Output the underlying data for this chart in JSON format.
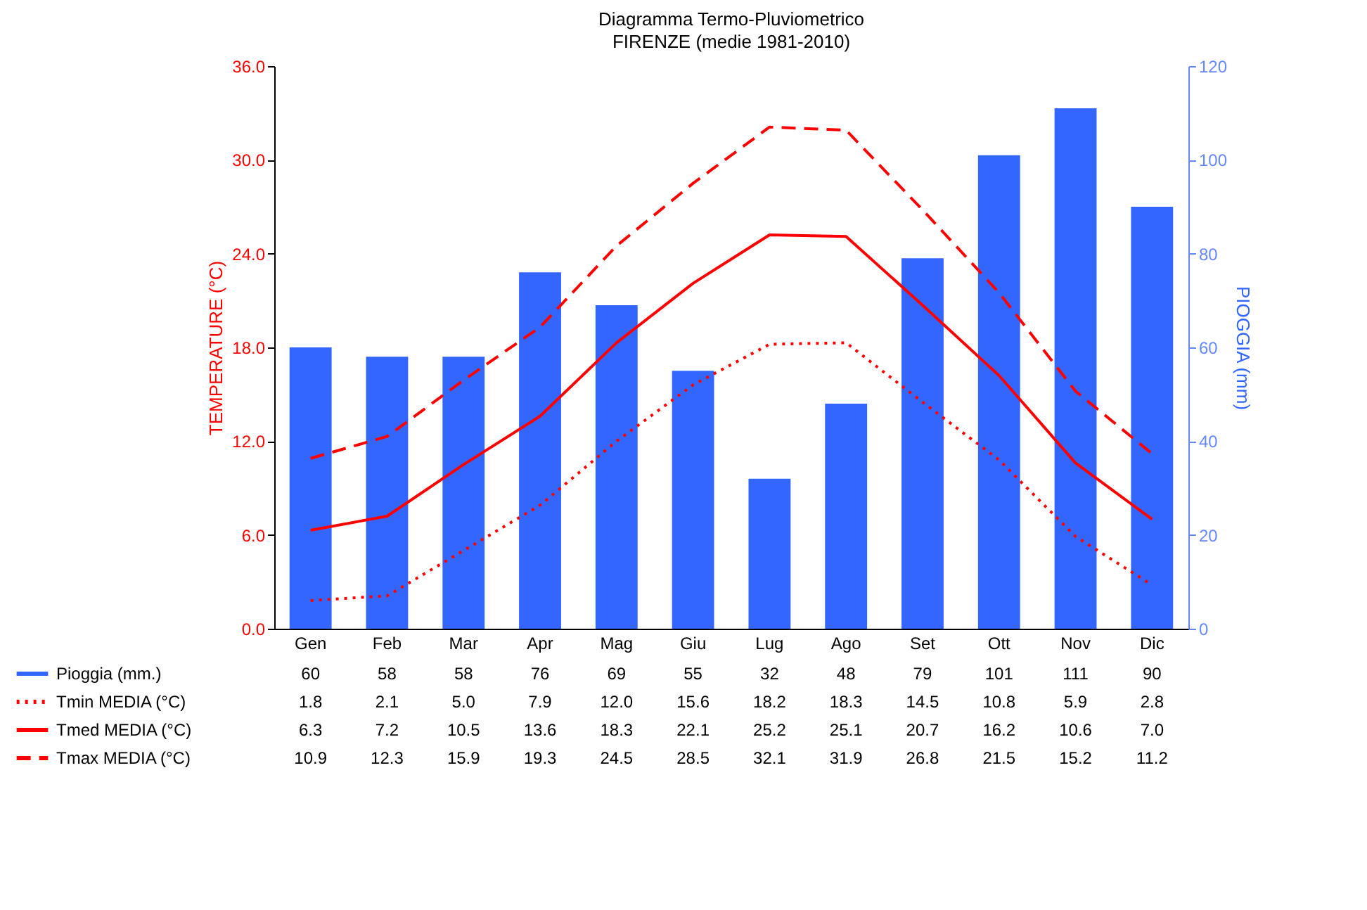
{
  "chart_data": {
    "type": "bar",
    "title": "Diagramma Termo-Pluviometrico",
    "subtitle": "FIRENZE (medie 1981-2010)",
    "ylabel": "TEMPERATURE (°C)",
    "y2label": "PIOGGIA (mm)",
    "categories": [
      "Gen",
      "Feb",
      "Mar",
      "Apr",
      "Mag",
      "Giu",
      "Lug",
      "Ago",
      "Set",
      "Ott",
      "Nov",
      "Dic"
    ],
    "series": [
      {
        "name": "Pioggia (mm.)",
        "type": "bar",
        "axis": "y2",
        "color": "#3366ff",
        "values": [
          60,
          58,
          58,
          76,
          69,
          55,
          32,
          48,
          79,
          101,
          111,
          90
        ],
        "value_labels": [
          "60",
          "58",
          "58",
          "76",
          "69",
          "55",
          "32",
          "48",
          "79",
          "101",
          "111",
          "90"
        ]
      },
      {
        "name": "Tmin MEDIA (°C)",
        "type": "line",
        "line_style": "dotted",
        "color": "#ff0000",
        "values": [
          1.8,
          2.1,
          5.0,
          7.9,
          12.0,
          15.6,
          18.2,
          18.3,
          14.5,
          10.8,
          5.9,
          2.8
        ],
        "value_labels": [
          "1.8",
          "2.1",
          "5.0",
          "7.9",
          "12.0",
          "15.6",
          "18.2",
          "18.3",
          "14.5",
          "10.8",
          "5.9",
          "2.8"
        ]
      },
      {
        "name": "Tmed MEDIA (°C)",
        "type": "line",
        "line_style": "solid",
        "color": "#ff0000",
        "values": [
          6.3,
          7.2,
          10.5,
          13.6,
          18.3,
          22.1,
          25.2,
          25.1,
          20.7,
          16.2,
          10.6,
          7.0
        ],
        "value_labels": [
          "6.3",
          "7.2",
          "10.5",
          "13.6",
          "18.3",
          "22.1",
          "25.2",
          "25.1",
          "20.7",
          "16.2",
          "10.6",
          "7.0"
        ]
      },
      {
        "name": "Tmax MEDIA (°C)",
        "type": "line",
        "line_style": "dashed",
        "color": "#ff0000",
        "values": [
          10.9,
          12.3,
          15.9,
          19.3,
          24.5,
          28.5,
          32.1,
          31.9,
          26.8,
          21.5,
          15.2,
          11.2
        ],
        "value_labels": [
          "10.9",
          "12.3",
          "15.9",
          "19.3",
          "24.5",
          "28.5",
          "32.1",
          "31.9",
          "26.8",
          "21.5",
          "15.2",
          "11.2"
        ]
      }
    ],
    "ylim": [
      0,
      36
    ],
    "yticks": [
      {
        "value": 0,
        "label": "0.0"
      },
      {
        "value": 6,
        "label": "6.0"
      },
      {
        "value": 12,
        "label": "12.0"
      },
      {
        "value": 18,
        "label": "18.0"
      },
      {
        "value": 24,
        "label": "24.0"
      },
      {
        "value": 30,
        "label": "30.0"
      },
      {
        "value": 36,
        "label": "36.0"
      }
    ],
    "y2lim": [
      0,
      120
    ],
    "y2ticks": [
      0,
      20,
      40,
      60,
      80,
      100,
      120
    ],
    "grid": false,
    "legend": "bottom",
    "marker": "none"
  }
}
